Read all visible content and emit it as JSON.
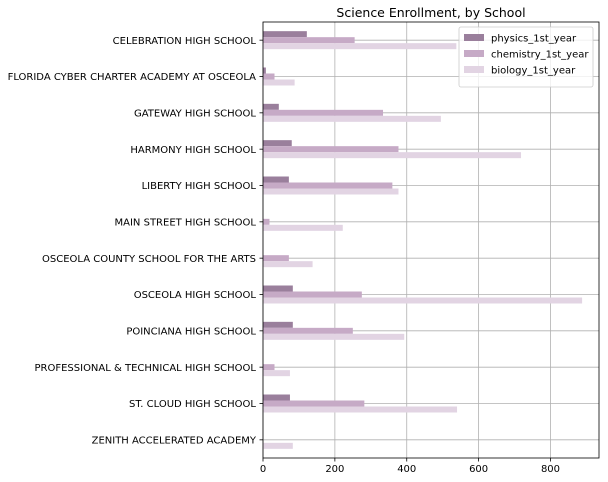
{
  "chart_data": {
    "type": "bar",
    "orientation": "horizontal",
    "title": "Science Enrollment, by School",
    "xlabel": "",
    "ylabel": "",
    "xlim": [
      0,
      935
    ],
    "xticks": [
      0,
      200,
      400,
      600,
      800
    ],
    "grid": true,
    "legend_position": "top-right",
    "categories": [
      "CELEBRATION HIGH SCHOOL",
      "FLORIDA CYBER CHARTER ACADEMY AT OSCEOLA",
      "GATEWAY HIGH SCHOOL",
      "HARMONY HIGH SCHOOL",
      "LIBERTY HIGH SCHOOL",
      "MAIN STREET HIGH SCHOOL",
      "OSCEOLA COUNTY SCHOOL FOR THE ARTS",
      "OSCEOLA HIGH SCHOOL",
      "POINCIANA HIGH SCHOOL",
      "PROFESSIONAL & TECHNICAL HIGH SCHOOL",
      "ST. CLOUD HIGH SCHOOL",
      "ZENITH ACCELERATED ACADEMY"
    ],
    "series": [
      {
        "name": "physics_1st_year",
        "color": "#9a7f9c",
        "values": [
          122,
          8,
          44,
          80,
          72,
          0,
          0,
          83,
          83,
          0,
          75,
          0
        ]
      },
      {
        "name": "chemistry_1st_year",
        "color": "#c6aac6",
        "values": [
          255,
          32,
          334,
          377,
          360,
          18,
          72,
          275,
          250,
          32,
          282,
          0
        ]
      },
      {
        "name": "biology_1st_year",
        "color": "#e2d4e3",
        "values": [
          538,
          88,
          495,
          718,
          377,
          222,
          138,
          888,
          393,
          75,
          540,
          83
        ]
      }
    ]
  }
}
